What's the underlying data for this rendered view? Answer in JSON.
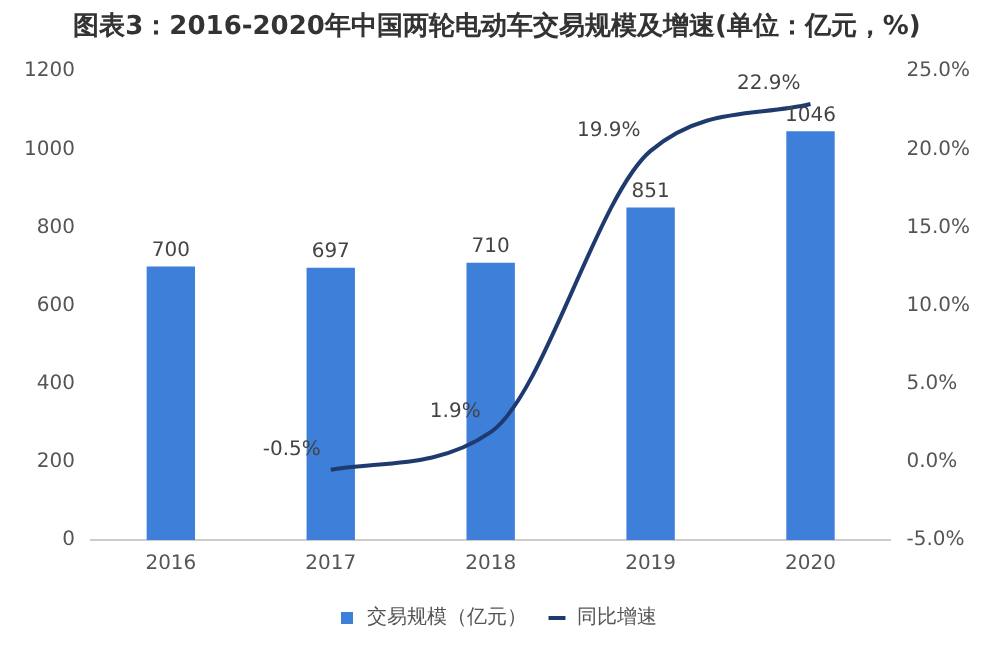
{
  "chart_data": {
    "type": "bar",
    "title": "图表3：2016-2020年中国两轮电动车交易规模及增速(单位：亿元，%)",
    "categories": [
      "2016",
      "2017",
      "2018",
      "2019",
      "2020"
    ],
    "series": [
      {
        "name": "交易规模（亿元）",
        "color": "#3d7fd9",
        "values": [
          700,
          697,
          710,
          851,
          1046
        ],
        "value_labels": [
          "700",
          "697",
          "710",
          "851",
          "1046"
        ]
      },
      {
        "name": "同比增速",
        "type": "line",
        "axis": "y2",
        "color": "#1f3a6e",
        "values": [
          null,
          -0.5,
          1.9,
          19.9,
          22.9
        ],
        "value_labels": [
          null,
          "-0.5%",
          "1.9%",
          "19.9%",
          "22.9%"
        ]
      }
    ],
    "ylim": [
      0,
      1200
    ],
    "yticks": [
      0,
      200,
      400,
      600,
      800,
      1000,
      1200
    ],
    "y2lim": [
      -5,
      25
    ],
    "y2ticks": [
      {
        "value": -5,
        "label": "-5.0%"
      },
      {
        "value": 0,
        "label": "0.0%"
      },
      {
        "value": 5,
        "label": "5.0%"
      },
      {
        "value": 10,
        "label": "10.0%"
      },
      {
        "value": 15,
        "label": "15.0%"
      },
      {
        "value": 20,
        "label": "20.0%"
      },
      {
        "value": 25,
        "label": "25.0%"
      }
    ],
    "grid": false,
    "legend": "bottom",
    "marker": "none",
    "line_style": "solid"
  }
}
